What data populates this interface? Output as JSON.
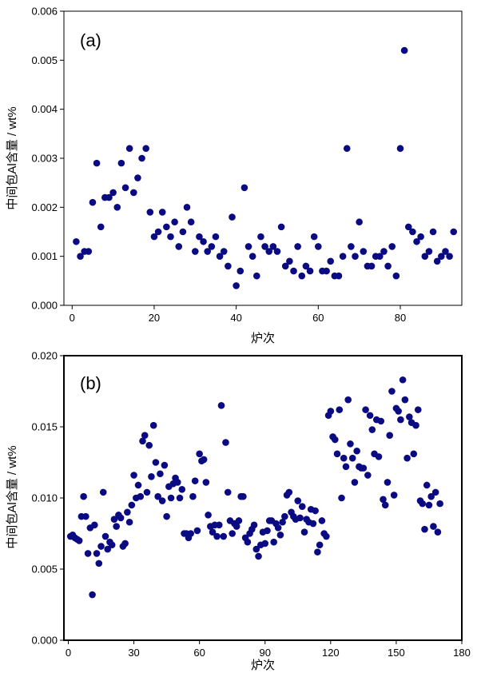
{
  "chart_data": [
    {
      "type": "scatter",
      "panel_label": "(a)",
      "xlabel": "炉次",
      "ylabel": "中间包Al含量 / wt%",
      "xlim": [
        -2,
        95
      ],
      "ylim": [
        0,
        0.006
      ],
      "xticks": [
        0,
        20,
        40,
        60,
        80
      ],
      "yticks": [
        0,
        0.001,
        0.002,
        0.003,
        0.004,
        0.005,
        0.006
      ],
      "ytick_labels": [
        "0.000",
        "0.001",
        "0.002",
        "0.003",
        "0.004",
        "0.005",
        "0.006"
      ],
      "marker_color": "#0a0a82",
      "series": [
        {
          "name": "Al",
          "points": [
            [
              1,
              0.0013
            ],
            [
              2,
              0.001
            ],
            [
              3,
              0.0011
            ],
            [
              4,
              0.0011
            ],
            [
              5,
              0.0021
            ],
            [
              6,
              0.0029
            ],
            [
              7,
              0.0016
            ],
            [
              8,
              0.0022
            ],
            [
              9,
              0.0022
            ],
            [
              10,
              0.0023
            ],
            [
              11,
              0.002
            ],
            [
              12,
              0.0029
            ],
            [
              13,
              0.0024
            ],
            [
              14,
              0.0032
            ],
            [
              15,
              0.0023
            ],
            [
              16,
              0.0026
            ],
            [
              17,
              0.003
            ],
            [
              18,
              0.0032
            ],
            [
              19,
              0.0019
            ],
            [
              20,
              0.0014
            ],
            [
              21,
              0.0015
            ],
            [
              22,
              0.0019
            ],
            [
              23,
              0.0016
            ],
            [
              24,
              0.0014
            ],
            [
              25,
              0.0017
            ],
            [
              26,
              0.0012
            ],
            [
              27,
              0.0015
            ],
            [
              28,
              0.002
            ],
            [
              29,
              0.0017
            ],
            [
              30,
              0.0011
            ],
            [
              31,
              0.0014
            ],
            [
              32,
              0.0013
            ],
            [
              33,
              0.0011
            ],
            [
              34,
              0.0012
            ],
            [
              35,
              0.0014
            ],
            [
              36,
              0.001
            ],
            [
              37,
              0.0011
            ],
            [
              38,
              0.0008
            ],
            [
              39,
              0.0018
            ],
            [
              40,
              0.0004
            ],
            [
              41,
              0.0007
            ],
            [
              42,
              0.0024
            ],
            [
              43,
              0.0012
            ],
            [
              44,
              0.001
            ],
            [
              45,
              0.0006
            ],
            [
              46,
              0.0014
            ],
            [
              47,
              0.0012
            ],
            [
              48,
              0.0011
            ],
            [
              49,
              0.0012
            ],
            [
              50,
              0.0011
            ],
            [
              51,
              0.0016
            ],
            [
              52,
              0.0008
            ],
            [
              53,
              0.0009
            ],
            [
              54,
              0.0007
            ],
            [
              55,
              0.0012
            ],
            [
              56,
              0.0006
            ],
            [
              57,
              0.0008
            ],
            [
              58,
              0.0007
            ],
            [
              59,
              0.0014
            ],
            [
              60,
              0.0012
            ],
            [
              61,
              0.0007
            ],
            [
              62,
              0.0007
            ],
            [
              63,
              0.0009
            ],
            [
              64,
              0.0006
            ],
            [
              65,
              0.0006
            ],
            [
              66,
              0.001
            ],
            [
              67,
              0.0032
            ],
            [
              68,
              0.0012
            ],
            [
              69,
              0.001
            ],
            [
              70,
              0.0017
            ],
            [
              71,
              0.0011
            ],
            [
              72,
              0.0008
            ],
            [
              73,
              0.0008
            ],
            [
              74,
              0.001
            ],
            [
              75,
              0.001
            ],
            [
              76,
              0.0011
            ],
            [
              77,
              0.0008
            ],
            [
              78,
              0.0012
            ],
            [
              79,
              0.0006
            ],
            [
              80,
              0.0032
            ],
            [
              81,
              0.0052
            ],
            [
              82,
              0.0016
            ],
            [
              83,
              0.0015
            ],
            [
              84,
              0.0013
            ],
            [
              85,
              0.0014
            ],
            [
              86,
              0.001
            ],
            [
              87,
              0.0011
            ],
            [
              88,
              0.0015
            ],
            [
              89,
              0.0009
            ],
            [
              90,
              0.001
            ],
            [
              91,
              0.0011
            ],
            [
              92,
              0.001
            ],
            [
              93,
              0.0015
            ]
          ]
        }
      ]
    },
    {
      "type": "scatter",
      "panel_label": "(b)",
      "xlabel": "炉次",
      "ylabel": "中间包Al含量 / wt%",
      "xlim": [
        -2,
        180
      ],
      "ylim": [
        0,
        0.02
      ],
      "xticks": [
        0,
        30,
        60,
        90,
        120,
        150,
        180
      ],
      "yticks": [
        0,
        0.005,
        0.01,
        0.015,
        0.02
      ],
      "ytick_labels": [
        "0.000",
        "0.005",
        "0.010",
        "0.015",
        "0.020"
      ],
      "marker_color": "#0a0a82",
      "series": [
        {
          "name": "Al",
          "points": [
            [
              1,
              0.0073
            ],
            [
              2,
              0.0074
            ],
            [
              3,
              0.0072
            ],
            [
              4,
              0.0071
            ],
            [
              5,
              0.007
            ],
            [
              6,
              0.0087
            ],
            [
              7,
              0.0101
            ],
            [
              8,
              0.0087
            ],
            [
              9,
              0.0061
            ],
            [
              10,
              0.0079
            ],
            [
              11,
              0.0032
            ],
            [
              12,
              0.0081
            ],
            [
              13,
              0.0061
            ],
            [
              14,
              0.0054
            ],
            [
              15,
              0.0066
            ],
            [
              16,
              0.0104
            ],
            [
              17,
              0.0073
            ],
            [
              18,
              0.0064
            ],
            [
              19,
              0.0069
            ],
            [
              20,
              0.0067
            ],
            [
              21,
              0.0085
            ],
            [
              22,
              0.008
            ],
            [
              23,
              0.0088
            ],
            [
              24,
              0.0086
            ],
            [
              25,
              0.0066
            ],
            [
              26,
              0.0068
            ],
            [
              27,
              0.009
            ],
            [
              28,
              0.0083
            ],
            [
              29,
              0.0095
            ],
            [
              30,
              0.0116
            ],
            [
              31,
              0.01
            ],
            [
              32,
              0.0109
            ],
            [
              33,
              0.0101
            ],
            [
              34,
              0.014
            ],
            [
              35,
              0.0144
            ],
            [
              36,
              0.0104
            ],
            [
              37,
              0.0137
            ],
            [
              38,
              0.0115
            ],
            [
              39,
              0.0151
            ],
            [
              40,
              0.0125
            ],
            [
              41,
              0.0101
            ],
            [
              42,
              0.0117
            ],
            [
              43,
              0.0098
            ],
            [
              44,
              0.0123
            ],
            [
              45,
              0.0087
            ],
            [
              46,
              0.0108
            ],
            [
              47,
              0.01
            ],
            [
              48,
              0.011
            ],
            [
              49,
              0.0114
            ],
            [
              50,
              0.0111
            ],
            [
              51,
              0.01
            ],
            [
              52,
              0.0106
            ],
            [
              53,
              0.0075
            ],
            [
              54,
              0.0075
            ],
            [
              55,
              0.0072
            ],
            [
              56,
              0.0075
            ],
            [
              57,
              0.0101
            ],
            [
              58,
              0.0112
            ],
            [
              59,
              0.0077
            ],
            [
              60,
              0.0131
            ],
            [
              61,
              0.0126
            ],
            [
              62,
              0.0127
            ],
            [
              63,
              0.0111
            ],
            [
              64,
              0.0088
            ],
            [
              65,
              0.008
            ],
            [
              66,
              0.0076
            ],
            [
              67,
              0.0081
            ],
            [
              68,
              0.0073
            ],
            [
              69,
              0.0081
            ],
            [
              70,
              0.0165
            ],
            [
              71,
              0.0073
            ],
            [
              72,
              0.0139
            ],
            [
              73,
              0.0104
            ],
            [
              74,
              0.0084
            ],
            [
              75,
              0.0075
            ],
            [
              76,
              0.0082
            ],
            [
              77,
              0.008
            ],
            [
              78,
              0.0084
            ],
            [
              79,
              0.0101
            ],
            [
              80,
              0.0101
            ],
            [
              81,
              0.0072
            ],
            [
              82,
              0.0069
            ],
            [
              83,
              0.0075
            ],
            [
              84,
              0.0078
            ],
            [
              85,
              0.0081
            ],
            [
              86,
              0.0064
            ],
            [
              87,
              0.0059
            ],
            [
              88,
              0.0067
            ],
            [
              89,
              0.0076
            ],
            [
              90,
              0.0068
            ],
            [
              91,
              0.0077
            ],
            [
              92,
              0.0084
            ],
            [
              93,
              0.0084
            ],
            [
              94,
              0.0069
            ],
            [
              95,
              0.0082
            ],
            [
              96,
              0.0079
            ],
            [
              97,
              0.0074
            ],
            [
              98,
              0.0083
            ],
            [
              99,
              0.0087
            ],
            [
              100,
              0.0102
            ],
            [
              101,
              0.0104
            ],
            [
              102,
              0.009
            ],
            [
              103,
              0.0087
            ],
            [
              104,
              0.0085
            ],
            [
              105,
              0.0098
            ],
            [
              106,
              0.0086
            ],
            [
              107,
              0.0094
            ],
            [
              108,
              0.0076
            ],
            [
              109,
              0.0085
            ],
            [
              110,
              0.0083
            ],
            [
              111,
              0.0092
            ],
            [
              112,
              0.0082
            ],
            [
              113,
              0.0091
            ],
            [
              114,
              0.0062
            ],
            [
              115,
              0.0067
            ],
            [
              116,
              0.0084
            ],
            [
              117,
              0.0075
            ],
            [
              118,
              0.0073
            ],
            [
              119,
              0.0158
            ],
            [
              120,
              0.0161
            ],
            [
              121,
              0.0143
            ],
            [
              122,
              0.0141
            ],
            [
              123,
              0.0131
            ],
            [
              124,
              0.0162
            ],
            [
              125,
              0.01
            ],
            [
              126,
              0.0128
            ],
            [
              127,
              0.0122
            ],
            [
              128,
              0.0169
            ],
            [
              129,
              0.0138
            ],
            [
              130,
              0.0128
            ],
            [
              131,
              0.0111
            ],
            [
              132,
              0.0133
            ],
            [
              133,
              0.0122
            ],
            [
              134,
              0.0121
            ],
            [
              135,
              0.0121
            ],
            [
              136,
              0.0162
            ],
            [
              137,
              0.0116
            ],
            [
              138,
              0.0158
            ],
            [
              139,
              0.0148
            ],
            [
              140,
              0.0131
            ],
            [
              141,
              0.0155
            ],
            [
              142,
              0.0129
            ],
            [
              143,
              0.0154
            ],
            [
              144,
              0.0099
            ],
            [
              145,
              0.0095
            ],
            [
              146,
              0.0111
            ],
            [
              147,
              0.0144
            ],
            [
              148,
              0.0175
            ],
            [
              149,
              0.0102
            ],
            [
              150,
              0.0163
            ],
            [
              151,
              0.0161
            ],
            [
              152,
              0.0155
            ],
            [
              153,
              0.0183
            ],
            [
              154,
              0.0169
            ],
            [
              155,
              0.0128
            ],
            [
              156,
              0.0157
            ],
            [
              157,
              0.0153
            ],
            [
              158,
              0.0131
            ],
            [
              159,
              0.0151
            ],
            [
              160,
              0.0162
            ],
            [
              161,
              0.0098
            ],
            [
              162,
              0.0096
            ],
            [
              163,
              0.0078
            ],
            [
              164,
              0.0109
            ],
            [
              165,
              0.0095
            ],
            [
              166,
              0.0101
            ],
            [
              167,
              0.008
            ],
            [
              168,
              0.0104
            ],
            [
              169,
              0.0076
            ],
            [
              170,
              0.0096
            ]
          ]
        }
      ]
    }
  ]
}
